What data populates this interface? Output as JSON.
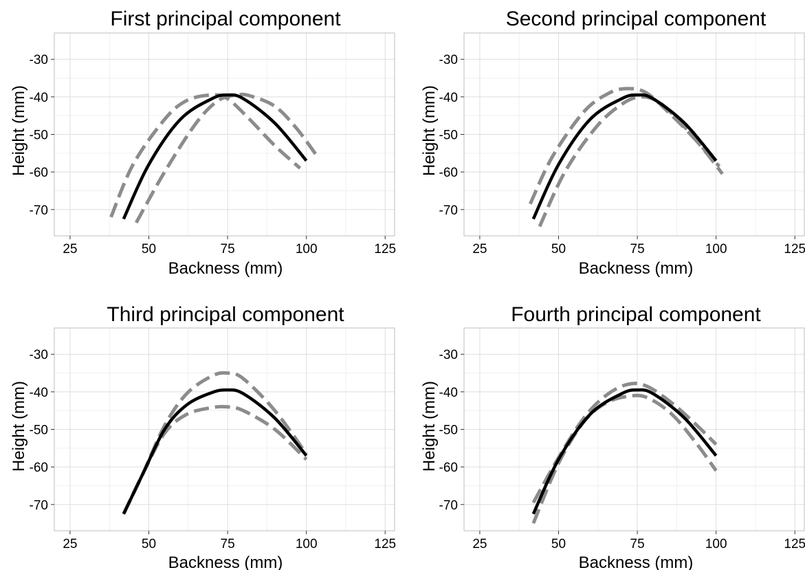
{
  "chart_data": [
    {
      "type": "line",
      "title": "First principal component",
      "xlabel": "Backness (mm)",
      "ylabel": "Height (mm)",
      "xlim": [
        20,
        128
      ],
      "ylim": [
        -77,
        -23
      ],
      "xticks": [
        "25",
        "50",
        "75",
        "100",
        "125"
      ],
      "yticks": [
        "-30",
        "-40",
        "-50",
        "-60",
        "-70"
      ],
      "grid": true,
      "series": [
        {
          "style": "mean",
          "color": "#000000",
          "dashed": false,
          "x": [
            42,
            50,
            60,
            70,
            75,
            80,
            90,
            100
          ],
          "y": [
            -72.5,
            -58,
            -46,
            -40.5,
            -39.5,
            -40.5,
            -47,
            -57
          ]
        },
        {
          "style": "plus",
          "color": "#8c8c8c",
          "dashed": true,
          "x": [
            38,
            45,
            55,
            62,
            70,
            75,
            82,
            90,
            98
          ],
          "y": [
            -72,
            -58,
            -46,
            -41,
            -39.5,
            -40.5,
            -46,
            -53,
            -59
          ]
        },
        {
          "style": "minus",
          "color": "#8c8c8c",
          "dashed": true,
          "x": [
            46,
            55,
            65,
            72,
            78,
            82,
            90,
            97,
            104
          ],
          "y": [
            -73.5,
            -60,
            -47,
            -41,
            -39.5,
            -39.7,
            -42.5,
            -48.5,
            -56.5
          ]
        }
      ]
    },
    {
      "type": "line",
      "title": "Second principal component",
      "xlabel": "Backness (mm)",
      "ylabel": "Height (mm)",
      "xlim": [
        20,
        128
      ],
      "ylim": [
        -77,
        -23
      ],
      "xticks": [
        "25",
        "50",
        "75",
        "100",
        "125"
      ],
      "yticks": [
        "-30",
        "-40",
        "-50",
        "-60",
        "-70"
      ],
      "grid": true,
      "series": [
        {
          "style": "mean",
          "color": "#000000",
          "dashed": false,
          "x": [
            42,
            50,
            60,
            70,
            75,
            80,
            90,
            100
          ],
          "y": [
            -72.5,
            -58,
            -46,
            -40.5,
            -39.5,
            -40.5,
            -47,
            -57
          ]
        },
        {
          "style": "plus",
          "color": "#8c8c8c",
          "dashed": true,
          "x": [
            41,
            48,
            58,
            66,
            72,
            78,
            86,
            93,
            101
          ],
          "y": [
            -68.5,
            -56,
            -44,
            -39,
            -37.8,
            -39,
            -45,
            -51,
            -58.5
          ]
        },
        {
          "style": "minus",
          "color": "#8c8c8c",
          "dashed": true,
          "x": [
            44,
            52,
            62,
            70,
            76,
            82,
            90,
            97,
            102
          ],
          "y": [
            -74.5,
            -60,
            -48,
            -42,
            -40,
            -41.5,
            -48,
            -55,
            -60.5
          ]
        }
      ]
    },
    {
      "type": "line",
      "title": "Third principal component",
      "xlabel": "Backness (mm)",
      "ylabel": "Height (mm)",
      "xlim": [
        20,
        128
      ],
      "ylim": [
        -77,
        -23
      ],
      "xticks": [
        "25",
        "50",
        "75",
        "100",
        "125"
      ],
      "yticks": [
        "-30",
        "-40",
        "-50",
        "-60",
        "-70"
      ],
      "grid": true,
      "series": [
        {
          "style": "mean",
          "color": "#000000",
          "dashed": false,
          "x": [
            42,
            48,
            55,
            62,
            70,
            75,
            80,
            90,
            100
          ],
          "y": [
            -72.5,
            -62,
            -50,
            -43.5,
            -40.2,
            -39.5,
            -40.5,
            -47,
            -57
          ]
        },
        {
          "style": "plus",
          "color": "#8c8c8c",
          "dashed": true,
          "x": [
            42,
            48,
            55,
            62,
            70,
            75,
            80,
            90,
            100
          ],
          "y": [
            -72.5,
            -62,
            -49,
            -40.5,
            -35.8,
            -35,
            -36.5,
            -45,
            -56.5
          ]
        },
        {
          "style": "minus",
          "color": "#8c8c8c",
          "dashed": true,
          "x": [
            42,
            48,
            55,
            62,
            70,
            75,
            80,
            90,
            100
          ],
          "y": [
            -72.5,
            -62,
            -51,
            -46,
            -44.2,
            -44,
            -45,
            -50,
            -58
          ]
        }
      ]
    },
    {
      "type": "line",
      "title": "Fourth principal component",
      "xlabel": "Backness (mm)",
      "ylabel": "Height (mm)",
      "xlim": [
        20,
        128
      ],
      "ylim": [
        -77,
        -23
      ],
      "xticks": [
        "25",
        "50",
        "75",
        "100",
        "125"
      ],
      "yticks": [
        "-30",
        "-40",
        "-50",
        "-60",
        "-70"
      ],
      "grid": true,
      "series": [
        {
          "style": "mean",
          "color": "#000000",
          "dashed": false,
          "x": [
            42,
            50,
            60,
            70,
            75,
            80,
            90,
            100
          ],
          "y": [
            -72.5,
            -58,
            -46,
            -40.5,
            -39.5,
            -40.5,
            -47,
            -57
          ]
        },
        {
          "style": "plus",
          "color": "#8c8c8c",
          "dashed": true,
          "x": [
            42,
            50,
            58,
            65,
            72,
            78,
            86,
            94,
            100
          ],
          "y": [
            -69.5,
            -57.5,
            -47,
            -41,
            -38,
            -38.5,
            -43,
            -49,
            -54
          ]
        },
        {
          "style": "minus",
          "color": "#8c8c8c",
          "dashed": true,
          "x": [
            42,
            50,
            58,
            65,
            72,
            78,
            86,
            94,
            100
          ],
          "y": [
            -75,
            -59,
            -48,
            -43,
            -41.2,
            -41.5,
            -46,
            -54,
            -61
          ]
        }
      ]
    }
  ]
}
